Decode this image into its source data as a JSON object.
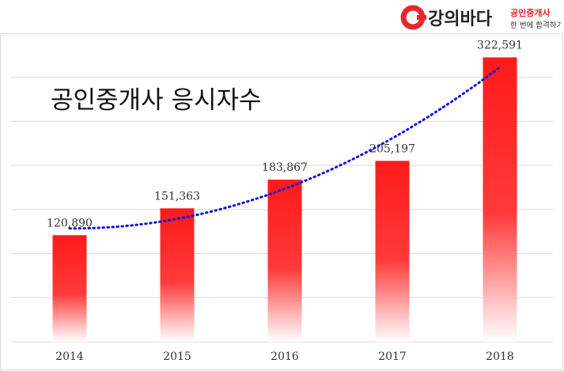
{
  "brand": {
    "name": "강의바다",
    "tagline_top": "공인중개사",
    "tagline_bottom": "한 번에 합격하기",
    "accent_color": "#e8262b",
    "icon": "c-circle-logo-icon"
  },
  "chart_data": {
    "type": "bar",
    "title": "공인중개사 응시자수",
    "categories": [
      "2014",
      "2015",
      "2016",
      "2017",
      "2018"
    ],
    "values": [
      120890,
      151363,
      183867,
      205197,
      322591
    ],
    "value_labels": [
      "120,890",
      "151,363",
      "183,867",
      "205,197",
      "322,591"
    ],
    "ylim": [
      0,
      350000
    ],
    "grid": true,
    "legend": "none",
    "trendline": {
      "style": "dotted",
      "type": "polynomial",
      "color": "#1010e0"
    },
    "bar_gradient": {
      "top": "#ff1a1a",
      "bottom": "#ffffff"
    }
  }
}
